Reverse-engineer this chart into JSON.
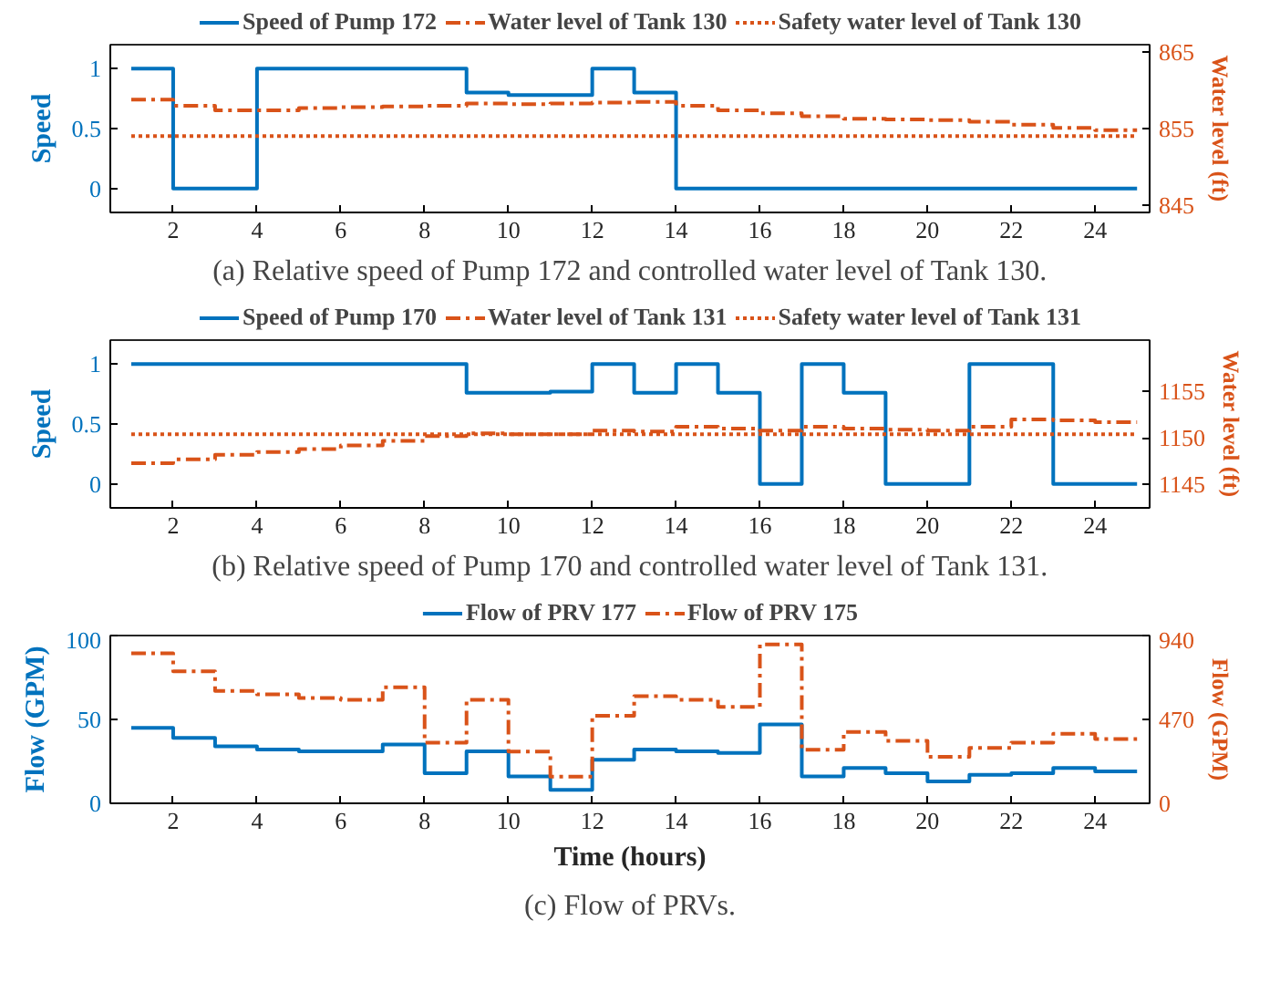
{
  "chart_data": [
    {
      "type": "step",
      "xlabel": null,
      "ylabel": "Speed",
      "y2label": "Water level (ft)",
      "x": [
        1,
        2,
        3,
        4,
        5,
        6,
        7,
        8,
        9,
        10,
        11,
        12,
        13,
        14,
        15,
        16,
        17,
        18,
        19,
        20,
        21,
        22,
        23,
        24,
        25
      ],
      "xlim": [
        0.5,
        25.3
      ],
      "xticks": [
        2,
        4,
        6,
        8,
        10,
        12,
        14,
        16,
        18,
        20,
        22,
        24
      ],
      "ylim": [
        -0.2,
        1.2
      ],
      "yticks": [
        0,
        0.5,
        1
      ],
      "y2lim": [
        844,
        866
      ],
      "y2ticks": [
        845,
        855,
        865
      ],
      "legend": "top",
      "grid": false,
      "marker": "none",
      "annotations": [
        "(a) Relative speed of Pump 172 and controlled water level of Tank 130."
      ],
      "series": [
        {
          "name": "Speed of Pump 172",
          "color": "#0072bd",
          "line_style": "solid",
          "values": [
            1,
            0,
            0,
            1,
            1,
            1,
            1,
            1,
            0.8,
            0.78,
            0.78,
            1,
            0.8,
            0,
            0,
            0,
            0,
            0,
            0,
            0,
            0,
            0,
            0,
            0,
            0
          ]
        },
        {
          "name": "Water level of Tank 130",
          "color": "#d95319",
          "line_style": "dashdot",
          "axis": "y2",
          "values": [
            858.8,
            858.0,
            857.4,
            857.4,
            857.7,
            857.8,
            857.9,
            858.0,
            858.3,
            858.2,
            858.3,
            858.4,
            858.5,
            858.0,
            857.4,
            857.0,
            856.6,
            856.3,
            856.2,
            856.1,
            855.9,
            855.5,
            855.1,
            854.8,
            854.8
          ]
        },
        {
          "name": "Safety water level of Tank 130",
          "type": "line",
          "color": "#d95319",
          "line_style": "dotted",
          "axis": "y2",
          "values": [
            854,
            854,
            854,
            854,
            854,
            854,
            854,
            854,
            854,
            854,
            854,
            854,
            854,
            854,
            854,
            854,
            854,
            854,
            854,
            854,
            854,
            854,
            854,
            854,
            854
          ]
        }
      ]
    },
    {
      "type": "step",
      "xlabel": null,
      "ylabel": "Speed",
      "y2label": "Water level (ft)",
      "x": [
        1,
        2,
        3,
        4,
        5,
        6,
        7,
        8,
        9,
        10,
        11,
        12,
        13,
        14,
        15,
        16,
        17,
        18,
        19,
        20,
        21,
        22,
        23,
        24,
        25
      ],
      "xlim": [
        0.5,
        25.3
      ],
      "xticks": [
        2,
        4,
        6,
        8,
        10,
        12,
        14,
        16,
        18,
        20,
        22,
        24
      ],
      "ylim": [
        -0.2,
        1.2
      ],
      "yticks": [
        0,
        0.5,
        1
      ],
      "y2lim": [
        1142.5,
        1160.5
      ],
      "y2ticks": [
        1145,
        1150,
        1155
      ],
      "legend": "top",
      "grid": false,
      "marker": "none",
      "annotations": [
        "(b) Relative speed of Pump 170 and controlled water level of Tank 131."
      ],
      "series": [
        {
          "name": "Speed of Pump 170",
          "color": "#0072bd",
          "line_style": "solid",
          "values": [
            1,
            1,
            1,
            1,
            1,
            1,
            1,
            1,
            0.76,
            0.76,
            0.77,
            1,
            0.76,
            1,
            0.76,
            0,
            1,
            0.76,
            0,
            0,
            1,
            1,
            0,
            0,
            0
          ]
        },
        {
          "name": "Water level of Tank 131",
          "color": "#d95319",
          "line_style": "dashdot",
          "axis": "y2",
          "values": [
            1147.3,
            1147.7,
            1148.2,
            1148.5,
            1148.8,
            1149.2,
            1149.7,
            1150.2,
            1150.5,
            1150.4,
            1150.4,
            1150.8,
            1150.7,
            1151.2,
            1151.0,
            1150.8,
            1151.2,
            1151.0,
            1150.9,
            1150.8,
            1151.2,
            1152.0,
            1151.9,
            1151.7,
            1151.7
          ]
        },
        {
          "name": "Safety water level of Tank 131",
          "type": "line",
          "color": "#d95319",
          "line_style": "dotted",
          "axis": "y2",
          "values": [
            1150.4,
            1150.4,
            1150.4,
            1150.4,
            1150.4,
            1150.4,
            1150.4,
            1150.4,
            1150.4,
            1150.4,
            1150.4,
            1150.4,
            1150.4,
            1150.4,
            1150.4,
            1150.4,
            1150.4,
            1150.4,
            1150.4,
            1150.4,
            1150.4,
            1150.4,
            1150.4,
            1150.4,
            1150.4
          ]
        }
      ]
    },
    {
      "type": "step",
      "xlabel": "Time (hours)",
      "ylabel": "Flow (GPM)",
      "y2label": "Flow (GPM)",
      "x": [
        1,
        2,
        3,
        4,
        5,
        6,
        7,
        8,
        9,
        10,
        11,
        12,
        13,
        14,
        15,
        16,
        17,
        18,
        19,
        20,
        21,
        22,
        23,
        24,
        25
      ],
      "xlim": [
        0.5,
        25.3
      ],
      "xticks": [
        2,
        4,
        6,
        8,
        10,
        12,
        14,
        16,
        18,
        20,
        22,
        24
      ],
      "ylim": [
        0,
        100
      ],
      "yticks": [
        0,
        50,
        100
      ],
      "y2lim": [
        0,
        940
      ],
      "y2ticks": [
        0,
        470,
        940
      ],
      "legend": "top",
      "grid": false,
      "marker": "none",
      "annotations": [
        "(c) Flow of PRVs."
      ],
      "series": [
        {
          "name": "Flow of PRV 177",
          "color": "#0072bd",
          "line_style": "solid",
          "values": [
            45,
            39,
            34,
            32,
            31,
            31,
            35,
            18,
            31,
            16,
            8,
            26,
            32,
            31,
            30,
            47,
            16,
            21,
            18,
            13,
            17,
            18,
            21,
            19,
            19
          ]
        },
        {
          "name": "Flow of PRV 175",
          "color": "#d95319",
          "line_style": "dashdot",
          "axis": "y2",
          "values": [
            840,
            740,
            630,
            610,
            590,
            580,
            650,
            340,
            580,
            290,
            150,
            490,
            600,
            580,
            540,
            890,
            300,
            400,
            350,
            260,
            310,
            340,
            390,
            360,
            360
          ]
        }
      ]
    }
  ]
}
